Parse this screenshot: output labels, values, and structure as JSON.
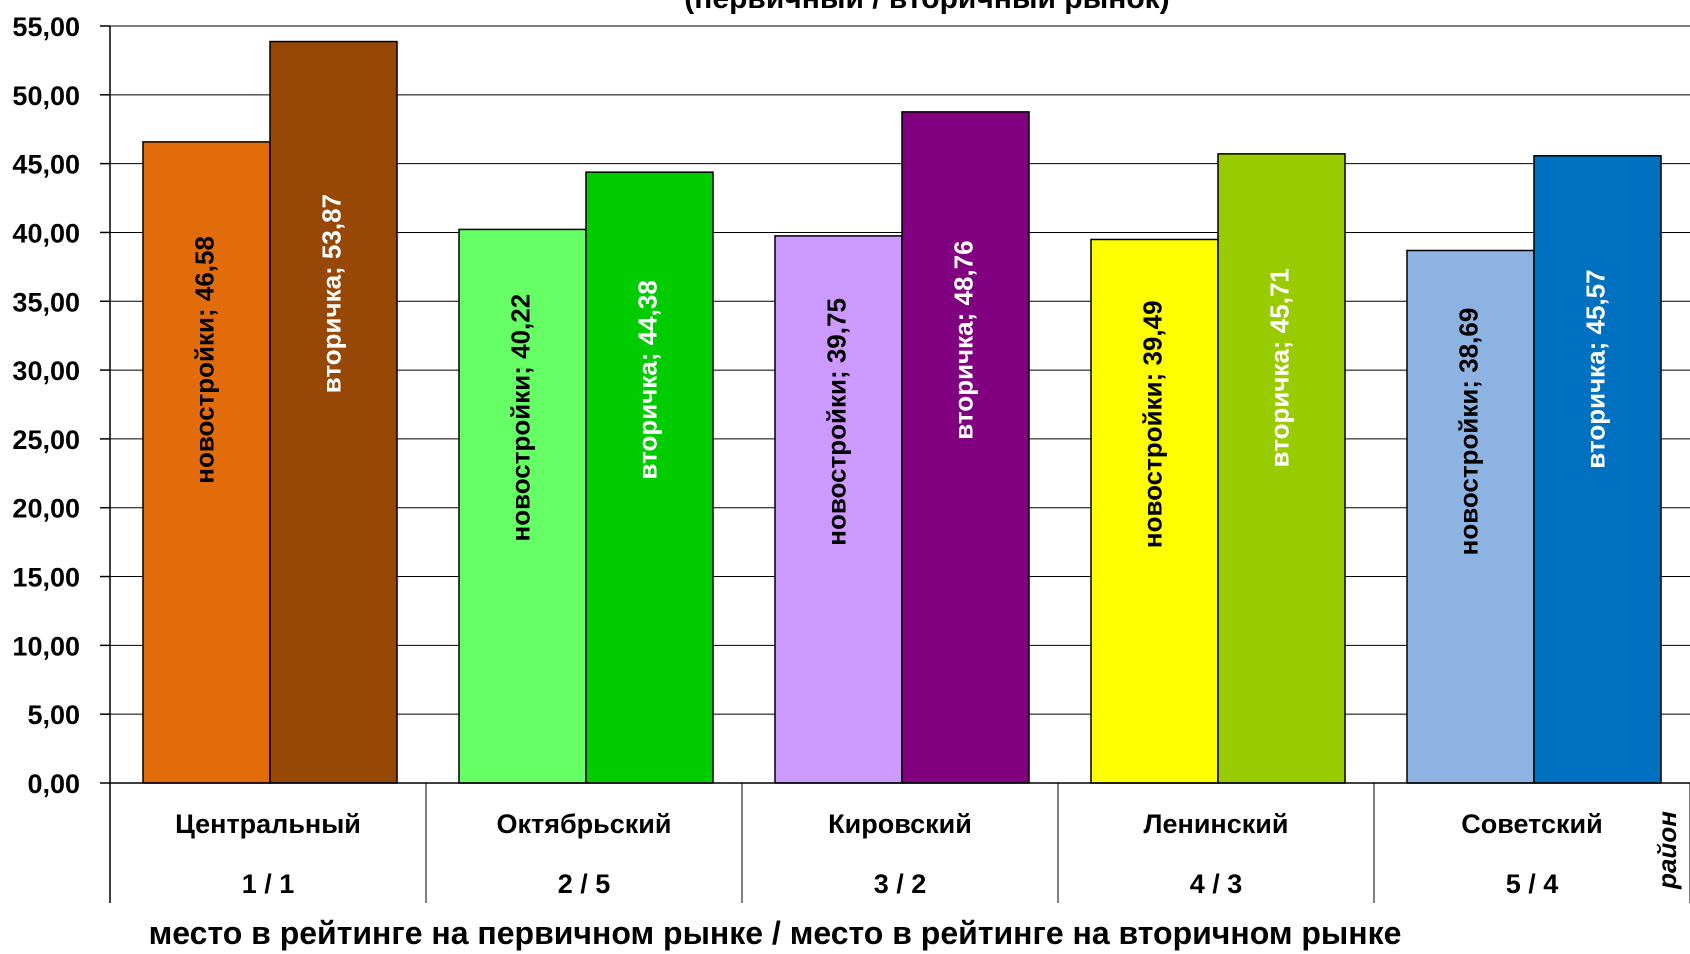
{
  "chart_data": {
    "type": "bar",
    "title": "(первичный / вторичный рынок)",
    "categories": [
      "Центральный",
      "Октябрьский",
      "Кировский",
      "Ленинский",
      "Советский"
    ],
    "ranks": [
      "1 / 1",
      "2 / 5",
      "3 / 2",
      "4 / 3",
      "5 / 4"
    ],
    "series": [
      {
        "name": "новостройки",
        "values": [
          46.58,
          40.22,
          39.75,
          39.49,
          38.69
        ],
        "value_labels": [
          "46,58",
          "40,22",
          "39,75",
          "39,49",
          "38,69"
        ],
        "colors": [
          "#E36C0A",
          "#66FF66",
          "#CC99FF",
          "#FFFF00",
          "#8DB3E2"
        ],
        "label_color": "#000000"
      },
      {
        "name": "вторичка",
        "values": [
          53.87,
          44.38,
          48.76,
          45.71,
          45.57
        ],
        "value_labels": [
          "53,87",
          "44,38",
          "48,76",
          "45,71",
          "45,57"
        ],
        "colors": [
          "#974806",
          "#00CC00",
          "#800080",
          "#99CC00",
          "#0070C0"
        ],
        "label_color": "#FFFFFF"
      }
    ],
    "ylim": [
      0,
      55
    ],
    "yticks": [
      0,
      5,
      10,
      15,
      20,
      25,
      30,
      35,
      40,
      45,
      50,
      55
    ],
    "ytick_labels": [
      "0,00",
      "5,00",
      "10,00",
      "15,00",
      "20,00",
      "25,00",
      "30,00",
      "35,00",
      "40,00",
      "45,00",
      "50,00",
      "55,00"
    ],
    "xlabel": "место в рейтинге на первичном рынке  /  место в рейтинге на вторичном рынке",
    "side_label": "район",
    "grid": true,
    "legend": "none"
  }
}
